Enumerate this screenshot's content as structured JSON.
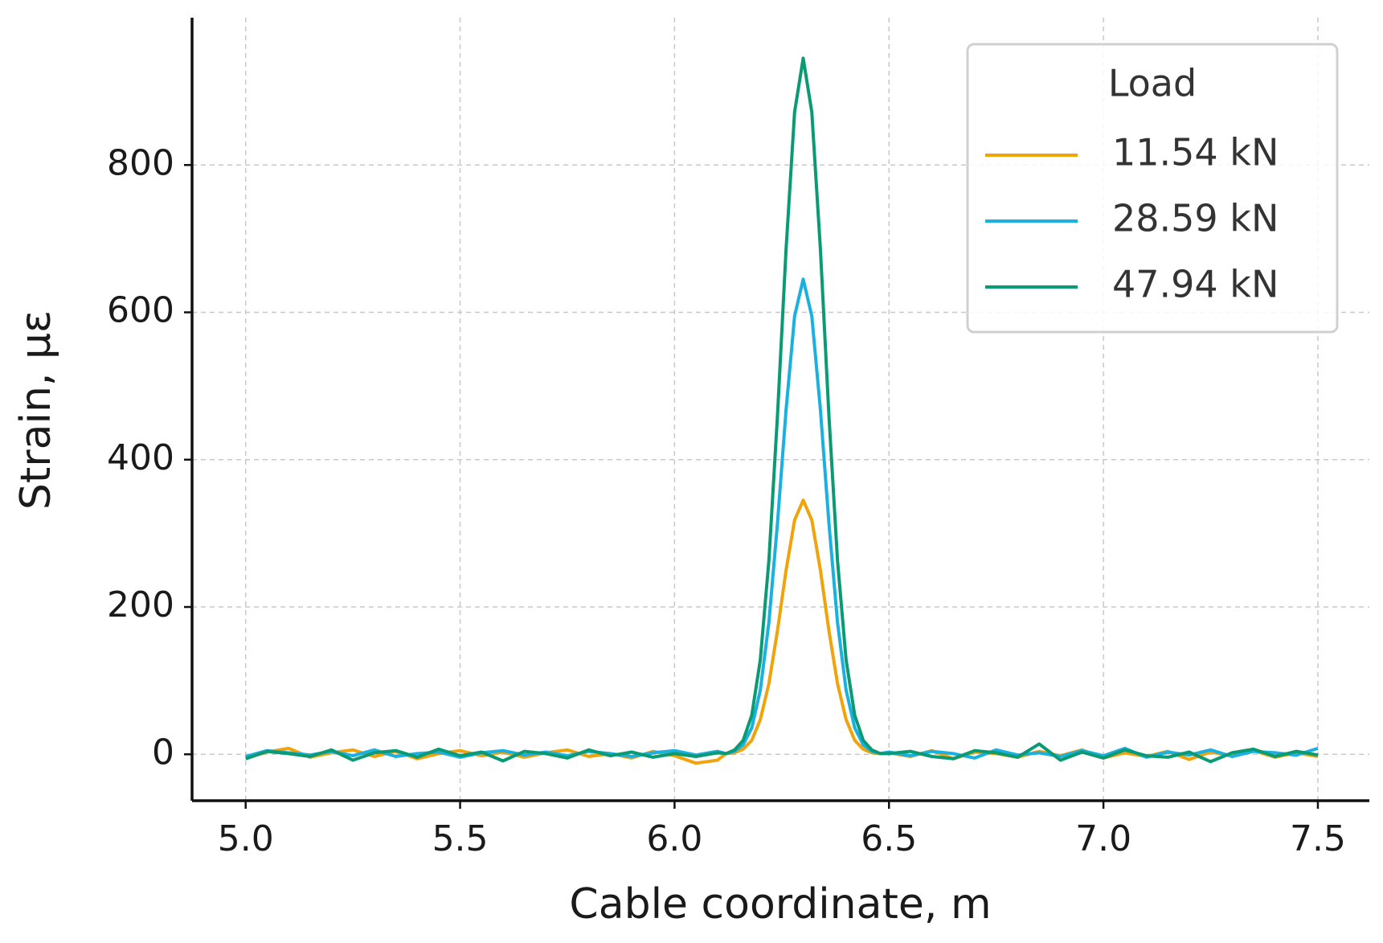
{
  "chart_data": {
    "type": "line",
    "x_label": "Cable coordinate, m",
    "y_label": "Strain, με",
    "x": [
      5,
      5.05,
      5.1,
      5.15,
      5.2,
      5.25,
      5.3,
      5.35,
      5.4,
      5.45,
      5.5,
      5.55,
      5.6,
      5.65,
      5.7,
      5.75,
      5.8,
      5.85,
      5.9,
      5.95,
      6,
      6.05,
      6.1,
      6.12,
      6.14,
      6.16,
      6.18,
      6.2,
      6.22,
      6.24,
      6.26,
      6.28,
      6.3,
      6.32,
      6.34,
      6.36,
      6.38,
      6.4,
      6.42,
      6.44,
      6.46,
      6.48,
      6.5,
      6.55,
      6.6,
      6.65,
      6.7,
      6.75,
      6.8,
      6.85,
      6.9,
      6.95,
      7,
      7.05,
      7.1,
      7.15,
      7.2,
      7.25,
      7.3,
      7.35,
      7.4,
      7.45,
      7.5
    ],
    "series": [
      {
        "name": "11.54 kN",
        "color": "#f0a30a",
        "values": [
          -5,
          3,
          8,
          -4,
          2,
          6,
          -3,
          4,
          -6,
          1,
          5,
          -2,
          3,
          -4,
          2,
          6,
          -3,
          1,
          -5,
          4,
          -2,
          -12,
          -8,
          1,
          2,
          7,
          19,
          47,
          96,
          168,
          250,
          318,
          345,
          318,
          250,
          168,
          96,
          47,
          19,
          7,
          2,
          1,
          2,
          -3,
          5,
          -6,
          3,
          1,
          -4,
          4,
          -2,
          6,
          -5,
          2,
          -3,
          4,
          -7,
          3,
          -2,
          5,
          -4,
          2,
          -3
        ]
      },
      {
        "name": "28.59 kN",
        "color": "#1ab0e0",
        "values": [
          -3,
          5,
          2,
          -1,
          4,
          -2,
          6,
          -3,
          1,
          3,
          -4,
          2,
          5,
          -1,
          3,
          -2,
          4,
          1,
          -3,
          2,
          5,
          -1,
          4,
          1,
          4,
          13,
          36,
          87,
          179,
          314,
          468,
          595,
          645,
          595,
          468,
          314,
          179,
          87,
          36,
          13,
          4,
          1,
          3,
          -2,
          4,
          1,
          -5,
          6,
          -1,
          2,
          -3,
          5,
          -2,
          8,
          -4,
          3,
          -1,
          6,
          -3,
          4,
          2,
          -1,
          8
        ]
      },
      {
        "name": "47.94 kN",
        "color": "#0a9a74",
        "values": [
          -6,
          4,
          1,
          -3,
          6,
          -8,
          2,
          5,
          -4,
          7,
          -2,
          3,
          -9,
          4,
          1,
          -5,
          6,
          -2,
          3,
          -4,
          1,
          -3,
          2,
          1,
          6,
          19,
          53,
          128,
          263,
          460,
          686,
          872,
          945,
          872,
          686,
          460,
          263,
          128,
          53,
          19,
          6,
          1,
          1,
          4,
          -3,
          -6,
          5,
          2,
          -4,
          14,
          -8,
          3,
          -5,
          6,
          -2,
          -4,
          3,
          -10,
          2,
          7,
          -3,
          4,
          -1
        ]
      }
    ],
    "xlim": [
      4.875,
      7.62
    ],
    "ylim": [
      -63,
      1000
    ],
    "xticks": [
      {
        "value": 5,
        "label": "5.0"
      },
      {
        "value": 5.5,
        "label": "5.5"
      },
      {
        "value": 6,
        "label": "6.0"
      },
      {
        "value": 6.5,
        "label": "6.5"
      },
      {
        "value": 7,
        "label": "7.0"
      },
      {
        "value": 7.5,
        "label": "7.5"
      }
    ],
    "yticks": [
      0,
      200,
      400,
      600,
      800
    ],
    "grid": true,
    "legend_title": "Load",
    "legend_position": "upper right"
  }
}
